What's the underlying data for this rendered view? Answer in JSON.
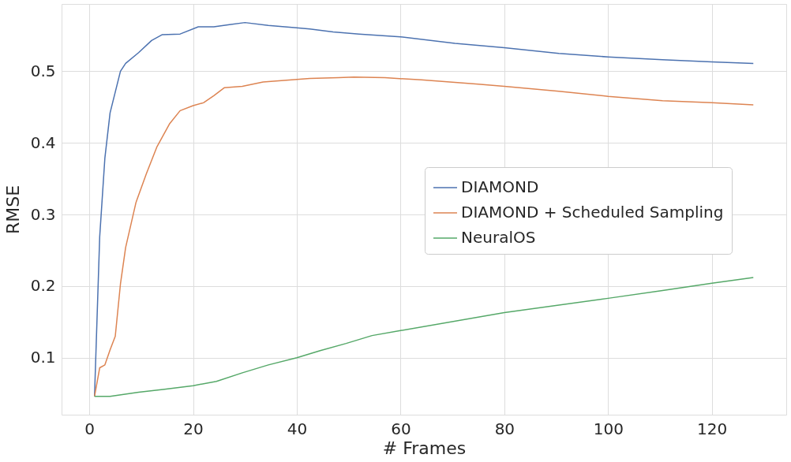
{
  "chart_data": {
    "type": "line",
    "xlabel": "# Frames",
    "ylabel": "RMSE",
    "xlim": [
      -5.35,
      134.35
    ],
    "ylim": [
      0.0205,
      0.594
    ],
    "xticks": [
      0,
      20,
      40,
      60,
      80,
      100,
      120
    ],
    "yticks": [
      0.1,
      0.2,
      0.3,
      0.4,
      0.5
    ],
    "grid": true,
    "legend": "right",
    "line_style": "solid",
    "series": [
      {
        "name": "DIAMOND",
        "color": "#4c72b0",
        "x": [
          1,
          2,
          3,
          4,
          6,
          7,
          9.5,
          12,
          14,
          17.5,
          21,
          24,
          27,
          30,
          34.5,
          39.5,
          42.5,
          47,
          52,
          60,
          70.5,
          80,
          90.5,
          100,
          110.5,
          120,
          128
        ],
        "values": [
          0.046,
          0.269,
          0.379,
          0.442,
          0.5,
          0.511,
          0.526,
          0.543,
          0.551,
          0.552,
          0.562,
          0.562,
          0.565,
          0.568,
          0.564,
          0.561,
          0.559,
          0.555,
          0.552,
          0.548,
          0.539,
          0.533,
          0.525,
          0.52,
          0.516,
          0.513,
          0.511
        ]
      },
      {
        "name": "DIAMOND + Scheduled Sampling",
        "color": "#dd8452",
        "x": [
          1,
          2,
          3,
          4,
          5,
          6,
          7,
          9,
          11,
          13,
          15.5,
          17.5,
          20,
          22,
          24,
          26,
          29.5,
          33.5,
          37,
          42.5,
          48,
          51,
          57,
          64,
          75,
          80,
          90.5,
          100,
          110.5,
          120,
          128
        ],
        "values": [
          0.046,
          0.086,
          0.09,
          0.111,
          0.13,
          0.203,
          0.254,
          0.317,
          0.357,
          0.394,
          0.427,
          0.445,
          0.452,
          0.456,
          0.466,
          0.477,
          0.479,
          0.485,
          0.487,
          0.49,
          0.491,
          0.492,
          0.491,
          0.488,
          0.482,
          0.479,
          0.472,
          0.465,
          0.459,
          0.456,
          0.453
        ]
      },
      {
        "name": "NeuralOS",
        "color": "#55a868",
        "x": [
          1,
          4,
          9.5,
          14.5,
          20,
          24.5,
          29.5,
          34.5,
          40,
          44.5,
          49.5,
          54.5,
          60,
          80,
          100,
          110.5,
          120,
          128
        ],
        "values": [
          0.046,
          0.046,
          0.052,
          0.056,
          0.061,
          0.067,
          0.079,
          0.09,
          0.1,
          0.11,
          0.12,
          0.131,
          0.138,
          0.163,
          0.183,
          0.194,
          0.204,
          0.212
        ]
      }
    ]
  }
}
